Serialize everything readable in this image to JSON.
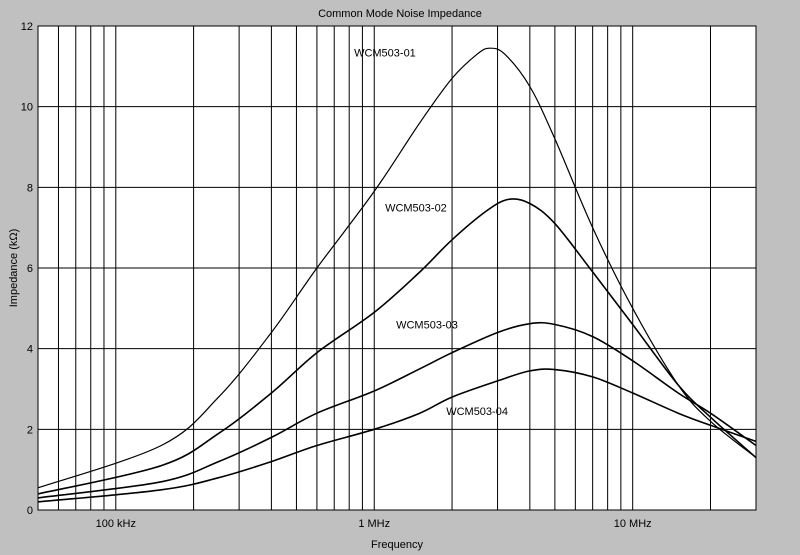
{
  "chart_data": {
    "type": "line",
    "title": "Common Mode Noise Impedance",
    "xlabel": "Frequency",
    "ylabel": "Impedance (kΩ)",
    "x_scale": "log",
    "xlim_hz": [
      50000,
      30000000
    ],
    "ylim": [
      0,
      12
    ],
    "grid": true,
    "y_ticks": [
      {
        "value": 0,
        "label": "0"
      },
      {
        "value": 2,
        "label": "2"
      },
      {
        "value": 4,
        "label": "4"
      },
      {
        "value": 6,
        "label": "6"
      },
      {
        "value": 8,
        "label": "8"
      },
      {
        "value": 10,
        "label": "10"
      },
      {
        "value": 12,
        "label": "12"
      }
    ],
    "x_ticks": [
      {
        "value": 100000,
        "label": "100 kHz"
      },
      {
        "value": 1000000,
        "label": "1 MHz"
      },
      {
        "value": 10000000,
        "label": "10 MHz"
      }
    ],
    "series": [
      {
        "name": "WCM503-01",
        "label_at": {
          "x": 1100000,
          "y": 11.25
        },
        "points": [
          [
            50000,
            0.55
          ],
          [
            150000,
            1.6
          ],
          [
            250000,
            2.8
          ],
          [
            400000,
            4.4
          ],
          [
            600000,
            6.0
          ],
          [
            1000000,
            7.9
          ],
          [
            1500000,
            9.6
          ],
          [
            2000000,
            10.7
          ],
          [
            2500000,
            11.3
          ],
          [
            2800000,
            11.45
          ],
          [
            3200000,
            11.3
          ],
          [
            4000000,
            10.5
          ],
          [
            5000000,
            9.2
          ],
          [
            7000000,
            7.0
          ],
          [
            10000000,
            5.0
          ],
          [
            15000000,
            3.1
          ],
          [
            20000000,
            2.2
          ],
          [
            30000000,
            1.3
          ]
        ]
      },
      {
        "name": "WCM503-02",
        "label_at": {
          "x": 1450000,
          "y": 7.4
        },
        "points": [
          [
            50000,
            0.4
          ],
          [
            150000,
            1.1
          ],
          [
            250000,
            1.9
          ],
          [
            400000,
            2.9
          ],
          [
            600000,
            3.9
          ],
          [
            1000000,
            4.9
          ],
          [
            1500000,
            5.9
          ],
          [
            2000000,
            6.7
          ],
          [
            2700000,
            7.4
          ],
          [
            3300000,
            7.7
          ],
          [
            4000000,
            7.6
          ],
          [
            5000000,
            7.1
          ],
          [
            7000000,
            5.9
          ],
          [
            10000000,
            4.6
          ],
          [
            15000000,
            3.1
          ],
          [
            20000000,
            2.3
          ],
          [
            30000000,
            1.3
          ]
        ]
      },
      {
        "name": "WCM503-03",
        "label_at": {
          "x": 1600000,
          "y": 4.5
        },
        "points": [
          [
            50000,
            0.3
          ],
          [
            150000,
            0.7
          ],
          [
            250000,
            1.2
          ],
          [
            400000,
            1.8
          ],
          [
            600000,
            2.4
          ],
          [
            1000000,
            2.95
          ],
          [
            1500000,
            3.5
          ],
          [
            2000000,
            3.9
          ],
          [
            3000000,
            4.4
          ],
          [
            4000000,
            4.62
          ],
          [
            5000000,
            4.6
          ],
          [
            7000000,
            4.3
          ],
          [
            10000000,
            3.7
          ],
          [
            15000000,
            2.9
          ],
          [
            20000000,
            2.4
          ],
          [
            30000000,
            1.6
          ]
        ]
      },
      {
        "name": "WCM503-04",
        "label_at": {
          "x": 2500000,
          "y": 2.35
        },
        "points": [
          [
            50000,
            0.2
          ],
          [
            150000,
            0.5
          ],
          [
            250000,
            0.8
          ],
          [
            400000,
            1.2
          ],
          [
            600000,
            1.6
          ],
          [
            1000000,
            2.0
          ],
          [
            1500000,
            2.4
          ],
          [
            2000000,
            2.8
          ],
          [
            3000000,
            3.2
          ],
          [
            4000000,
            3.45
          ],
          [
            5000000,
            3.48
          ],
          [
            7000000,
            3.3
          ],
          [
            10000000,
            2.9
          ],
          [
            15000000,
            2.4
          ],
          [
            20000000,
            2.1
          ],
          [
            30000000,
            1.7
          ]
        ]
      }
    ],
    "colors": {
      "background": "#c0c0c0",
      "plot_background": "#ffffff",
      "grid": "#000000",
      "line": "#000000"
    }
  }
}
